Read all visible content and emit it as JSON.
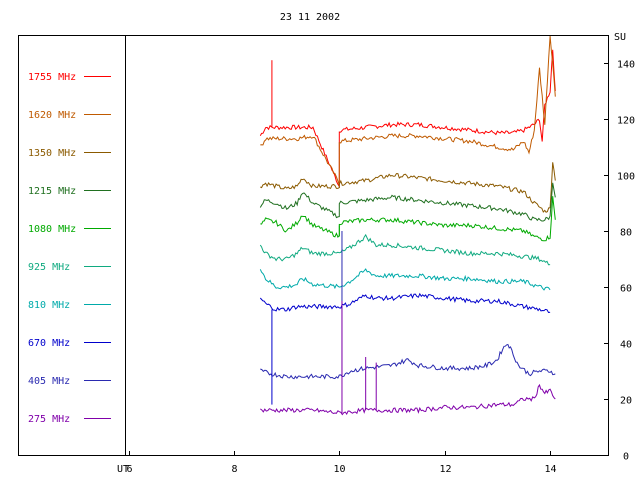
{
  "chart_data": {
    "type": "line",
    "title": "23 11 2002",
    "xlabel": "UT",
    "ylabel": "SU",
    "xlim": [
      3.9,
      15.1
    ],
    "ylim": [
      0,
      150
    ],
    "x_ticks": [
      6,
      8,
      10,
      12,
      14
    ],
    "y_ticks": [
      0,
      20,
      40,
      60,
      80,
      100,
      120,
      140
    ],
    "grid": false,
    "legend_position": "left",
    "series": [
      {
        "name": "1755 MHz",
        "color": "#ff0000",
        "points": [
          [
            8.5,
            114
          ],
          [
            8.6,
            117
          ],
          [
            8.8,
            117
          ],
          [
            9.0,
            117
          ],
          [
            9.2,
            117
          ],
          [
            9.5,
            117
          ],
          [
            10.0,
            96
          ],
          [
            10.0,
            116
          ],
          [
            10.5,
            117
          ],
          [
            11.0,
            118
          ],
          [
            11.5,
            118
          ],
          [
            12.0,
            117
          ],
          [
            12.5,
            116
          ],
          [
            13.0,
            115
          ],
          [
            13.3,
            115
          ],
          [
            13.5,
            116
          ],
          [
            13.7,
            118
          ],
          [
            13.8,
            120
          ],
          [
            13.85,
            112
          ],
          [
            13.9,
            125
          ],
          [
            14.0,
            130
          ],
          [
            14.05,
            145
          ],
          [
            14.1,
            130
          ]
        ]
      },
      {
        "name": "1620 MHz",
        "color": "#c05a00",
        "points": [
          [
            8.5,
            110
          ],
          [
            8.6,
            113
          ],
          [
            8.8,
            113
          ],
          [
            9.0,
            113
          ],
          [
            9.2,
            113
          ],
          [
            9.5,
            114
          ],
          [
            10.0,
            97
          ],
          [
            10.0,
            112
          ],
          [
            10.5,
            113
          ],
          [
            11.0,
            114
          ],
          [
            11.5,
            114
          ],
          [
            12.0,
            113
          ],
          [
            12.5,
            112
          ],
          [
            13.0,
            110
          ],
          [
            13.3,
            109
          ],
          [
            13.5,
            112
          ],
          [
            13.6,
            108
          ],
          [
            13.7,
            116
          ],
          [
            13.8,
            138
          ],
          [
            13.9,
            118
          ],
          [
            14.0,
            150
          ],
          [
            14.05,
            140
          ],
          [
            14.1,
            128
          ]
        ]
      },
      {
        "name": "1350 MHz",
        "color": "#8b5a00",
        "points": [
          [
            8.5,
            96
          ],
          [
            8.6,
            97
          ],
          [
            8.8,
            96
          ],
          [
            9.0,
            95
          ],
          [
            9.2,
            96
          ],
          [
            9.3,
            99
          ],
          [
            9.5,
            96
          ],
          [
            10.0,
            96
          ],
          [
            10.0,
            97
          ],
          [
            10.5,
            98
          ],
          [
            11.0,
            100
          ],
          [
            11.5,
            99
          ],
          [
            12.0,
            98
          ],
          [
            12.5,
            97
          ],
          [
            13.0,
            96
          ],
          [
            13.5,
            94
          ],
          [
            13.7,
            90
          ],
          [
            13.9,
            87
          ],
          [
            14.0,
            88
          ],
          [
            14.05,
            105
          ],
          [
            14.1,
            98
          ]
        ]
      },
      {
        "name": "1215 MHz",
        "color": "#207020",
        "points": [
          [
            8.5,
            89
          ],
          [
            8.6,
            91
          ],
          [
            8.8,
            90
          ],
          [
            9.0,
            88
          ],
          [
            9.2,
            90
          ],
          [
            9.3,
            94
          ],
          [
            9.5,
            90
          ],
          [
            10.0,
            85
          ],
          [
            10.0,
            90
          ],
          [
            10.5,
            91
          ],
          [
            11.0,
            92
          ],
          [
            11.5,
            91
          ],
          [
            12.0,
            90
          ],
          [
            12.5,
            89
          ],
          [
            13.0,
            88
          ],
          [
            13.5,
            86
          ],
          [
            13.7,
            84
          ],
          [
            13.9,
            84
          ],
          [
            14.0,
            85
          ],
          [
            14.05,
            98
          ],
          [
            14.1,
            92
          ]
        ]
      },
      {
        "name": "1080 MHz",
        "color": "#00aa00",
        "points": [
          [
            8.5,
            82
          ],
          [
            8.6,
            84
          ],
          [
            8.8,
            83
          ],
          [
            9.0,
            80
          ],
          [
            9.2,
            83
          ],
          [
            9.3,
            86
          ],
          [
            9.5,
            82
          ],
          [
            10.0,
            78
          ],
          [
            10.0,
            83
          ],
          [
            10.5,
            84
          ],
          [
            11.0,
            84
          ],
          [
            11.5,
            83
          ],
          [
            12.0,
            82
          ],
          [
            12.5,
            82
          ],
          [
            13.0,
            81
          ],
          [
            13.5,
            80
          ],
          [
            13.7,
            78
          ],
          [
            13.9,
            77
          ],
          [
            14.0,
            78
          ],
          [
            14.05,
            92
          ],
          [
            14.1,
            84
          ]
        ]
      },
      {
        "name": "925 MHz",
        "color": "#10aa80",
        "points": [
          [
            8.5,
            75
          ],
          [
            8.6,
            72
          ],
          [
            8.8,
            70
          ],
          [
            9.0,
            70
          ],
          [
            9.2,
            72
          ],
          [
            9.3,
            74
          ],
          [
            9.5,
            72
          ],
          [
            10.0,
            72
          ],
          [
            10.2,
            74
          ],
          [
            10.5,
            78
          ],
          [
            10.7,
            75
          ],
          [
            11.0,
            75
          ],
          [
            11.5,
            74
          ],
          [
            12.0,
            73
          ],
          [
            12.5,
            72
          ],
          [
            13.0,
            72
          ],
          [
            13.5,
            71
          ],
          [
            13.8,
            70
          ],
          [
            14.0,
            68
          ]
        ]
      },
      {
        "name": "810 MHz",
        "color": "#00aaaa",
        "points": [
          [
            8.5,
            67
          ],
          [
            8.6,
            63
          ],
          [
            8.8,
            60
          ],
          [
            9.0,
            60
          ],
          [
            9.2,
            61
          ],
          [
            9.3,
            63
          ],
          [
            9.5,
            61
          ],
          [
            10.0,
            60
          ],
          [
            10.2,
            62
          ],
          [
            10.5,
            66
          ],
          [
            10.7,
            64
          ],
          [
            11.0,
            64
          ],
          [
            11.5,
            64
          ],
          [
            12.0,
            63
          ],
          [
            12.5,
            63
          ],
          [
            13.0,
            62
          ],
          [
            13.5,
            62
          ],
          [
            13.8,
            60
          ],
          [
            14.0,
            59
          ]
        ]
      },
      {
        "name": "670 MHz",
        "color": "#0000cc",
        "points": [
          [
            8.5,
            56
          ],
          [
            8.6,
            54
          ],
          [
            8.8,
            52
          ],
          [
            9.0,
            52
          ],
          [
            9.2,
            53
          ],
          [
            9.5,
            53
          ],
          [
            10.0,
            53
          ],
          [
            10.2,
            54
          ],
          [
            10.5,
            57
          ],
          [
            10.7,
            56
          ],
          [
            11.0,
            56
          ],
          [
            11.5,
            57
          ],
          [
            12.0,
            56
          ],
          [
            12.5,
            55
          ],
          [
            13.0,
            55
          ],
          [
            13.5,
            53
          ],
          [
            13.8,
            52
          ],
          [
            14.0,
            51
          ]
        ]
      },
      {
        "name": "405 MHz",
        "color": "#2a2ab0",
        "points": [
          [
            8.5,
            30
          ],
          [
            8.7,
            29
          ],
          [
            9.0,
            28
          ],
          [
            9.5,
            28
          ],
          [
            10.0,
            28
          ],
          [
            10.2,
            30
          ],
          [
            10.5,
            31
          ],
          [
            11.0,
            32
          ],
          [
            11.3,
            34
          ],
          [
            11.5,
            32
          ],
          [
            12.0,
            31
          ],
          [
            12.5,
            31
          ],
          [
            12.8,
            32
          ],
          [
            13.0,
            34
          ],
          [
            13.1,
            38
          ],
          [
            13.2,
            40
          ],
          [
            13.3,
            36
          ],
          [
            13.4,
            32
          ],
          [
            13.6,
            29
          ],
          [
            13.8,
            30
          ],
          [
            14.0,
            30
          ],
          [
            14.1,
            29
          ]
        ]
      },
      {
        "name": "275 MHz",
        "color": "#8000aa",
        "points": [
          [
            8.5,
            16
          ],
          [
            8.7,
            16
          ],
          [
            9.0,
            16
          ],
          [
            9.5,
            16
          ],
          [
            10.0,
            15
          ],
          [
            10.5,
            16
          ],
          [
            11.0,
            16
          ],
          [
            11.5,
            16
          ],
          [
            12.0,
            17
          ],
          [
            12.5,
            17
          ],
          [
            13.0,
            18
          ],
          [
            13.3,
            18
          ],
          [
            13.5,
            20
          ],
          [
            13.7,
            20
          ],
          [
            13.8,
            25
          ],
          [
            13.9,
            22
          ],
          [
            14.0,
            23
          ],
          [
            14.1,
            20
          ]
        ]
      }
    ],
    "spikes": [
      {
        "series": "1755 MHz",
        "x": 8.72,
        "y": 141
      },
      {
        "series": "670 MHz",
        "x": 8.72,
        "y": 18
      },
      {
        "series": "1080 MHz",
        "x": 10.0,
        "y": 82
      },
      {
        "series": "405 MHz",
        "x": 10.05,
        "y": 80
      },
      {
        "series": "275 MHz",
        "x": 10.05,
        "y": 55
      },
      {
        "series": "275 MHz",
        "x": 10.5,
        "y": 35
      },
      {
        "series": "275 MHz",
        "x": 10.7,
        "y": 33
      }
    ]
  }
}
